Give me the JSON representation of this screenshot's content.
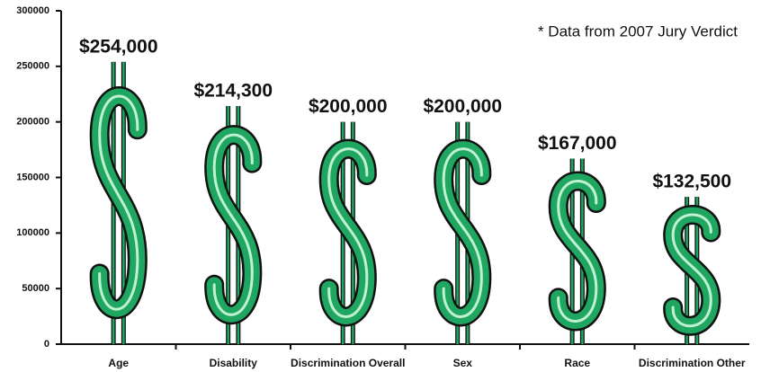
{
  "chart_data": {
    "type": "pictograph",
    "annotation": "* Data from 2007 Jury Verdict",
    "categories": [
      "Age",
      "Disability",
      "Discrimination Overall",
      "Sex",
      "Race",
      "Discrimination Other"
    ],
    "values": [
      254000,
      214300,
      200000,
      200000,
      167000,
      132500
    ],
    "value_labels": [
      "$254,000",
      "$214,300",
      "$200,000",
      "$200,000",
      "$167,000",
      "$132,500"
    ],
    "color": "#1fa660",
    "ylim": [
      0,
      300000
    ],
    "yticks": [
      0,
      50000,
      100000,
      150000,
      200000,
      250000,
      300000
    ]
  }
}
